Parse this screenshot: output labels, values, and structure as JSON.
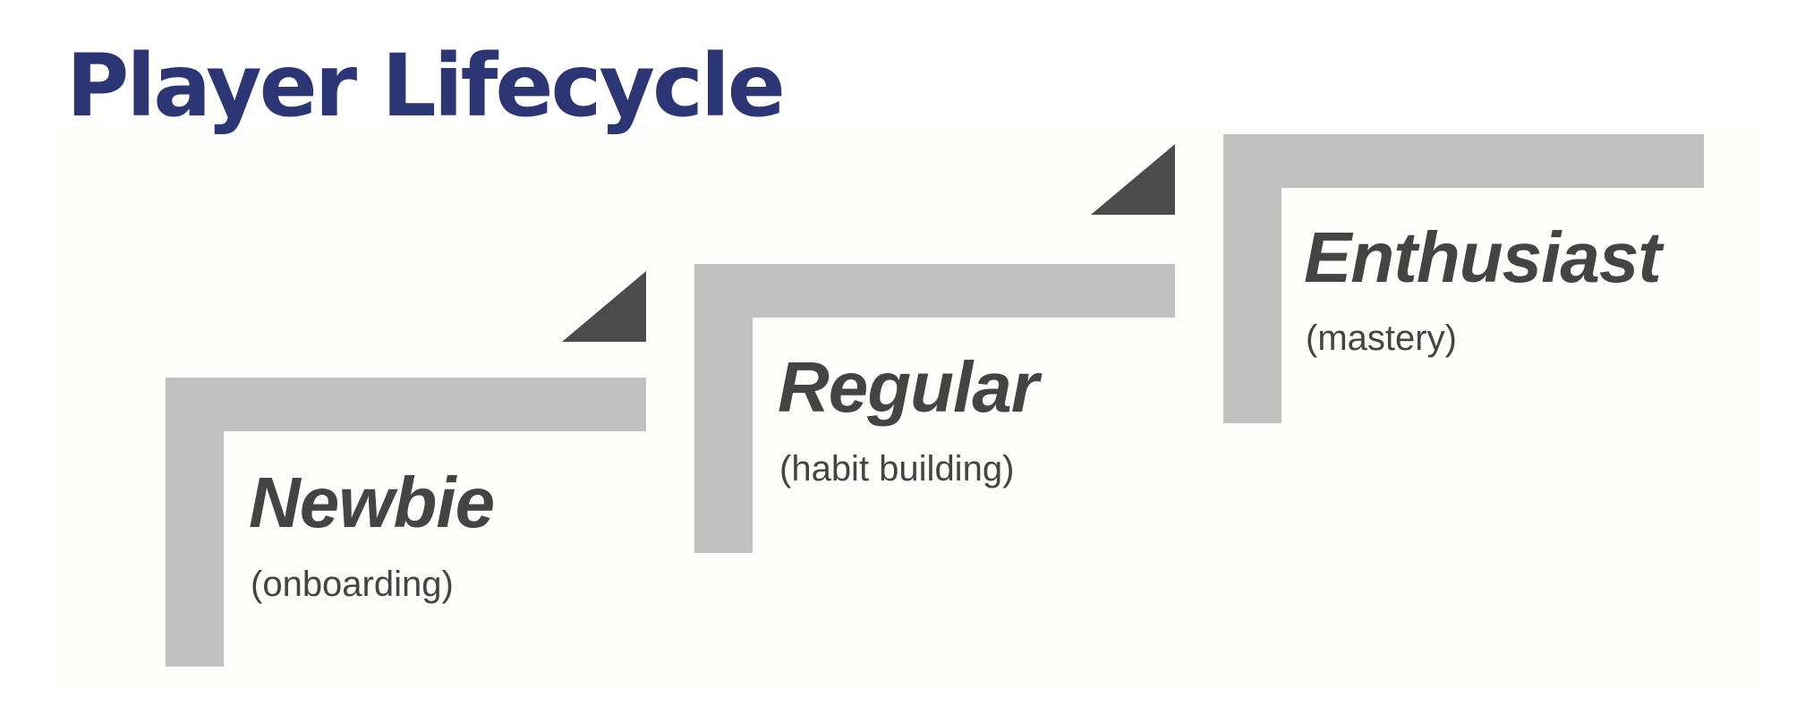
{
  "title": "Player Lifecycle",
  "colors": {
    "title": "#2c3674",
    "bracket": "#bfc0bf",
    "arrow": "#4b4b4b",
    "label": "#444444"
  },
  "stages": [
    {
      "name": "Newbie",
      "subtitle": "(onboarding)"
    },
    {
      "name": "Regular",
      "subtitle": "(habit building)"
    },
    {
      "name": "Enthusiast",
      "subtitle": "(mastery)"
    }
  ]
}
